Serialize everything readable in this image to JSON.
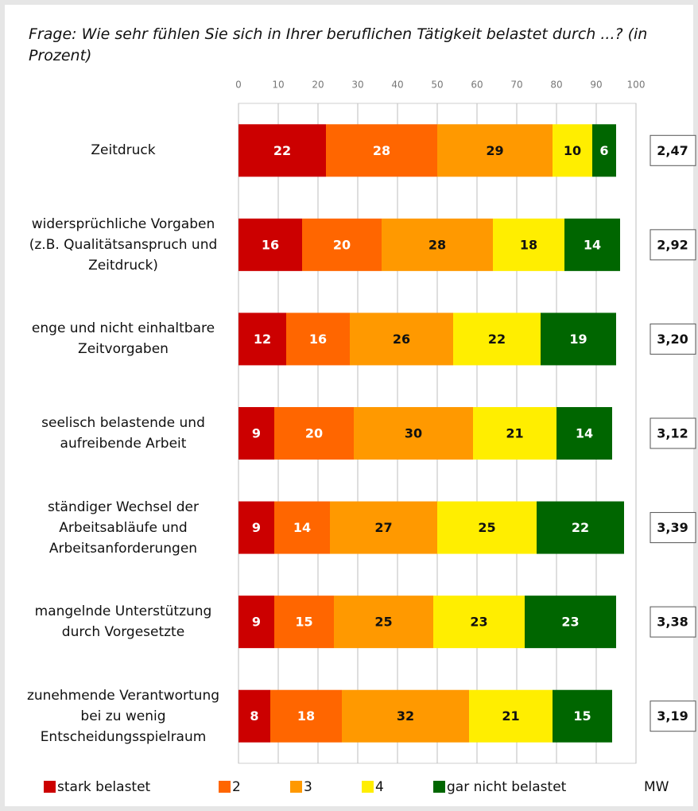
{
  "chart_data": {
    "type": "stacked_bar_horizontal",
    "title": "Frage: Wie sehr fühlen Sie sich in Ihrer beruflichen Tätigkeit belastet durch ...? (in Prozent)",
    "categories": [
      "Zeitdruck",
      "widersprüchliche Vorgaben (z.B. Qualitätsanspruch und Zeitdruck)",
      "enge und nicht einhaltbare Zeitvorgaben",
      "seelisch belastende und aufreibende Arbeit",
      "ständiger Wechsel der Arbeitsabläufe und Arbeitsanforderungen",
      "mangelnde Unterstützung durch Vorgesetzte",
      "zunehmende Verantwortung bei zu wenig Entscheidungsspielraum"
    ],
    "series": [
      {
        "name": "stark belastet",
        "color": "#cc0000",
        "label_color": "#ffffff",
        "values": [
          22,
          16,
          12,
          9,
          9,
          9,
          8
        ]
      },
      {
        "name": "2",
        "color": "#ff6600",
        "label_color": "#ffffff",
        "values": [
          28,
          20,
          16,
          20,
          14,
          15,
          18
        ]
      },
      {
        "name": "3",
        "color": "#ff9900",
        "label_color": "#111111",
        "values": [
          29,
          28,
          26,
          30,
          27,
          25,
          32
        ]
      },
      {
        "name": "4",
        "color": "#ffee00",
        "label_color": "#111111",
        "values": [
          10,
          18,
          22,
          21,
          25,
          23,
          21
        ]
      },
      {
        "name": "gar nicht belastet",
        "color": "#006600",
        "label_color": "#ffffff",
        "values": [
          6,
          14,
          19,
          14,
          22,
          23,
          15
        ]
      }
    ],
    "mean_label": "MW",
    "mean_values": [
      2.47,
      2.92,
      3.2,
      3.12,
      3.39,
      3.38,
      3.19
    ],
    "mean_value_labels": [
      "2,47",
      "2,92",
      "3,20",
      "3,12",
      "3,39",
      "3,38",
      "3,19"
    ],
    "xlim": [
      0,
      100
    ],
    "xticks": [
      0,
      10,
      20,
      30,
      40,
      50,
      60,
      70,
      80,
      90,
      100
    ],
    "grid": true
  }
}
